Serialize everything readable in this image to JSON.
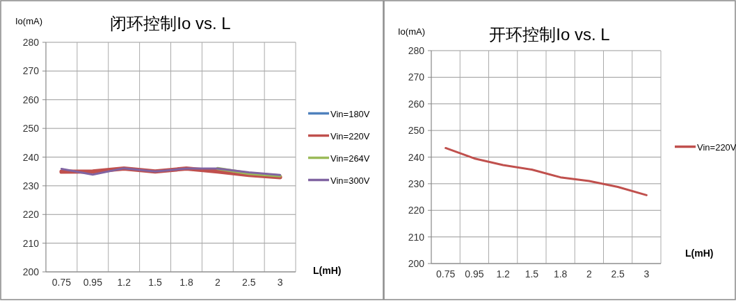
{
  "chart_data": [
    {
      "type": "line",
      "title": "闭环控制Io vs. L",
      "ylabel": "Io(mA)",
      "xlabel": "L(mH)",
      "categories": [
        "0.75",
        "0.95",
        "1.2",
        "1.5",
        "1.8",
        "2",
        "2.5",
        "3"
      ],
      "ylim": [
        200,
        280
      ],
      "yticks": [
        200,
        210,
        220,
        230,
        240,
        250,
        260,
        270,
        280
      ],
      "grid": true,
      "legend": "right",
      "series": [
        {
          "name": "Vin=180V",
          "color": "#4f81bd",
          "values": [
            null,
            null,
            null,
            null,
            null,
            null,
            null,
            null
          ]
        },
        {
          "name": "Vin=220V",
          "color": "#c0504d",
          "values": [
            234.9,
            235,
            236,
            235,
            236,
            235,
            233.8,
            233
          ]
        },
        {
          "name": "Vin=264V",
          "color": "#9bbb59",
          "values": [
            null,
            null,
            null,
            null,
            null,
            236,
            234.3,
            233.5
          ]
        },
        {
          "name": "Vin=300V",
          "color": "#8064a2",
          "values": [
            235.9,
            233.9,
            236.1,
            235,
            236,
            236,
            234.7,
            233.8
          ]
        }
      ]
    },
    {
      "type": "line",
      "title": "开环控制Io vs. L",
      "ylabel": "Io(mA)",
      "xlabel": "L(mH)",
      "categories": [
        "0.75",
        "0.95",
        "1.2",
        "1.5",
        "1.8",
        "2",
        "2.5",
        "3"
      ],
      "ylim": [
        200,
        280
      ],
      "yticks": [
        200,
        210,
        220,
        230,
        240,
        250,
        260,
        270,
        280
      ],
      "grid": true,
      "legend": "right",
      "series": [
        {
          "name": "Vin=220V",
          "color": "#c0504d",
          "values": [
            243.4,
            239.5,
            237,
            235.3,
            232.4,
            231,
            228.8,
            225.7
          ]
        }
      ]
    }
  ]
}
